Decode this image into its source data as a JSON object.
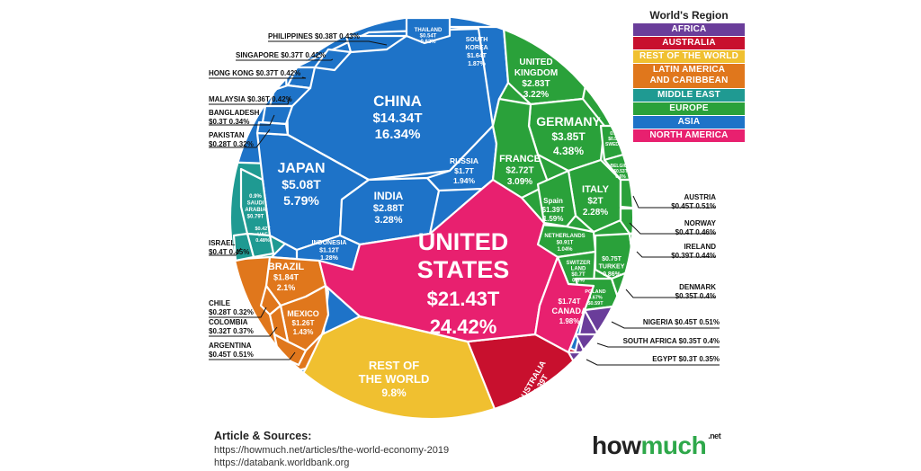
{
  "chart_data": {
    "type": "voronoi-treemap",
    "title": "",
    "unit": "Nominal GDP (USD trillions) and share of world economy",
    "legend_title": "World's Region",
    "regions": [
      {
        "name": "AFRICA",
        "color": "#6a3d9a"
      },
      {
        "name": "AUSTRALIA",
        "color": "#c8102e"
      },
      {
        "name": "REST OF THE WORLD",
        "color": "#f0c030"
      },
      {
        "name": "LATIN AMERICA AND CARIBBEAN",
        "color": "#e0771c"
      },
      {
        "name": "MIDDLE EAST",
        "color": "#1f9a92"
      },
      {
        "name": "EUROPE",
        "color": "#2aa13a"
      },
      {
        "name": "ASIA",
        "color": "#1e73c8"
      },
      {
        "name": "NORTH AMERICA",
        "color": "#e8206f"
      }
    ],
    "countries": [
      {
        "name": "UNITED STATES",
        "gdp": "$21.43T",
        "share": "24.42%",
        "region": "NORTH AMERICA"
      },
      {
        "name": "CHINA",
        "gdp": "$14.34T",
        "share": "16.34%",
        "region": "ASIA"
      },
      {
        "name": "JAPAN",
        "gdp": "$5.08T",
        "share": "5.79%",
        "region": "ASIA"
      },
      {
        "name": "GERMANY",
        "gdp": "$3.85T",
        "share": "4.38%",
        "region": "EUROPE"
      },
      {
        "name": "INDIA",
        "gdp": "$2.88T",
        "share": "3.28%",
        "region": "ASIA"
      },
      {
        "name": "UNITED KINGDOM",
        "gdp": "$2.83T",
        "share": "3.22%",
        "region": "EUROPE"
      },
      {
        "name": "FRANCE",
        "gdp": "$2.72T",
        "share": "3.09%",
        "region": "EUROPE"
      },
      {
        "name": "ITALY",
        "gdp": "$2T",
        "share": "2.28%",
        "region": "EUROPE"
      },
      {
        "name": "BRAZIL",
        "gdp": "$1.84T",
        "share": "2.1%",
        "region": "LATIN AMERICA AND CARIBBEAN"
      },
      {
        "name": "CANADA",
        "gdp": "$1.74T",
        "share": "1.98%",
        "region": "NORTH AMERICA"
      },
      {
        "name": "RUSSIA",
        "gdp": "$1.7T",
        "share": "1.94%",
        "region": "EUROPE"
      },
      {
        "name": "SOUTH KOREA",
        "gdp": "$1.64T",
        "share": "1.87%",
        "region": "ASIA"
      },
      {
        "name": "SPAIN",
        "gdp": "$1.39T",
        "share": "1.59%",
        "region": "EUROPE"
      },
      {
        "name": "AUSTRALIA",
        "gdp": "$1.39T",
        "share": "1.59%",
        "region": "AUSTRALIA"
      },
      {
        "name": "MEXICO",
        "gdp": "$1.26T",
        "share": "1.43%",
        "region": "LATIN AMERICA AND CARIBBEAN"
      },
      {
        "name": "INDONESIA",
        "gdp": "$1.12T",
        "share": "1.28%",
        "region": "ASIA"
      },
      {
        "name": "NETHERLANDS",
        "gdp": "$0.91T",
        "share": "1.04%",
        "region": "EUROPE"
      },
      {
        "name": "SAUDI ARABIA",
        "gdp": "$0.79T",
        "share": "0.9%",
        "region": "MIDDLE EAST"
      },
      {
        "name": "TURKEY",
        "gdp": "$0.75T",
        "share": "0.86%",
        "region": "EUROPE"
      },
      {
        "name": "SWITZERLAND",
        "gdp": "$0.7T",
        "share": "0.8%",
        "region": "EUROPE"
      },
      {
        "name": "POLAND",
        "gdp": "$0.59T",
        "share": "0.67%",
        "region": "EUROPE"
      },
      {
        "name": "THAILAND",
        "gdp": "$0.54T",
        "share": "0.62%",
        "region": "ASIA"
      },
      {
        "name": "SWEDEN",
        "gdp": "$0.53T",
        "share": "0.6%",
        "region": "EUROPE"
      },
      {
        "name": "BELGIUM",
        "gdp": "$0.53T",
        "share": "0.6%",
        "region": "EUROPE"
      },
      {
        "name": "UAE",
        "gdp": "$0.42T",
        "share": "0.48%",
        "region": "MIDDLE EAST"
      },
      {
        "name": "AUSTRIA",
        "gdp": "$0.45T",
        "share": "0.51%",
        "region": "EUROPE"
      },
      {
        "name": "NORWAY",
        "gdp": "$0.4T",
        "share": "0.46%",
        "region": "EUROPE"
      },
      {
        "name": "IRELAND",
        "gdp": "$0.39T",
        "share": "0.44%",
        "region": "EUROPE"
      },
      {
        "name": "DENMARK",
        "gdp": "$0.35T",
        "share": "0.4%",
        "region": "EUROPE"
      },
      {
        "name": "NIGERIA",
        "gdp": "$0.45T",
        "share": "0.51%",
        "region": "AFRICA"
      },
      {
        "name": "SOUTH AFRICA",
        "gdp": "$0.35T",
        "share": "0.4%",
        "region": "AFRICA"
      },
      {
        "name": "EGYPT",
        "gdp": "$0.3T",
        "share": "0.35%",
        "region": "AFRICA"
      },
      {
        "name": "ISRAEL",
        "gdp": "$0.4T",
        "share": "0.45%",
        "region": "MIDDLE EAST"
      },
      {
        "name": "PHILIPPINES",
        "gdp": "$0.38T",
        "share": "0.43%",
        "region": "ASIA"
      },
      {
        "name": "SINGAPORE",
        "gdp": "$0.37T",
        "share": "0.42%",
        "region": "ASIA"
      },
      {
        "name": "HONG KONG",
        "gdp": "$0.37T",
        "share": "0.42%",
        "region": "ASIA"
      },
      {
        "name": "MALAYSIA",
        "gdp": "$0.36T",
        "share": "0.42%",
        "region": "ASIA"
      },
      {
        "name": "BANGLADESH",
        "gdp": "$0.3T",
        "share": "0.34%",
        "region": "ASIA"
      },
      {
        "name": "PAKISTAN",
        "gdp": "$0.28T",
        "share": "0.32%",
        "region": "ASIA"
      },
      {
        "name": "CHILE",
        "gdp": "$0.28T",
        "share": "0.32%",
        "region": "LATIN AMERICA AND CARIBBEAN"
      },
      {
        "name": "COLOMBIA",
        "gdp": "$0.32T",
        "share": "0.37%",
        "region": "LATIN AMERICA AND CARIBBEAN"
      },
      {
        "name": "ARGENTINA",
        "gdp": "$0.45T",
        "share": "0.51%",
        "region": "LATIN AMERICA AND CARIBBEAN"
      },
      {
        "name": "REST OF THE WORLD",
        "gdp": "",
        "share": "9.8%",
        "region": "REST OF THE WORLD"
      }
    ],
    "inline_labels": {
      "us": [
        "UNITED",
        "STATES",
        "$21.43T",
        "24.42%"
      ],
      "china": [
        "CHINA",
        "$14.34T",
        "16.34%"
      ],
      "japan": [
        "JAPAN",
        "$5.08T",
        "5.79%"
      ],
      "india": [
        "INDIA",
        "$2.88T",
        "3.28%"
      ],
      "indonesia": [
        "INDONESIA",
        "$1.12T",
        "1.28%"
      ],
      "russia": [
        "RUSSIA",
        "$1.7T",
        "1.94%"
      ],
      "south_korea": [
        "SOUTH",
        "KOREA",
        "$1.64T",
        "1.87%"
      ],
      "thailand": [
        "THAILAND",
        "$0.54T",
        "0.62%"
      ],
      "uk": [
        "UNITED",
        "KINGDOM",
        "$2.83T",
        "3.22%"
      ],
      "germany": [
        "GERMANY",
        "$3.85T",
        "4.38%"
      ],
      "france": [
        "FRANCE",
        "$2.72T",
        "3.09%"
      ],
      "italy": [
        "ITALY",
        "$2T",
        "2.28%"
      ],
      "spain": [
        "Spain",
        "$1.39T",
        "1.59%"
      ],
      "netherlands": [
        "NETHERLANDS",
        "$0.91T",
        "1.04%"
      ],
      "switzerland": [
        "SWITZER",
        "LAND",
        "$0.7T",
        "0.8%"
      ],
      "turkey": [
        "$0.75T",
        "TURKEY",
        "0.86%"
      ],
      "poland": [
        "POLAND",
        "0.67%",
        "$0.59T"
      ],
      "sweden": [
        "0.6%",
        "$0.53T",
        "SWEDEN"
      ],
      "belgium": [
        "BELGIUM",
        "$0.53T",
        "0.6%"
      ],
      "saudi": [
        "0.9%",
        "SAUDI",
        "ARABIA",
        "$0.79T"
      ],
      "uae": [
        "$0.42T",
        "UAE",
        "0.48%"
      ],
      "brazil": [
        "BRAZIL",
        "$1.84T",
        "2.1%"
      ],
      "mexico": [
        "MEXICO",
        "$1.26T",
        "1.43%"
      ],
      "canada": [
        "$1.74T",
        "CANADA",
        "1.98%"
      ],
      "rest": [
        "REST OF",
        "THE WORLD",
        "9.8%"
      ],
      "australia": [
        "AUSTRALIA",
        "$1.39T",
        "1.59%"
      ]
    },
    "external_labels": {
      "philippines": [
        "PHILIPPINES $0.38T  0.43%"
      ],
      "singapore": [
        "SINGAPORE $0.37T  0.42%"
      ],
      "hong_kong": [
        "HONG KONG  $0.37T  0.42%"
      ],
      "malaysia": [
        "MALAYSIA $0.36T 0.42%"
      ],
      "bangladesh": [
        "BANGLADESH",
        "$0.3T  0.34%"
      ],
      "pakistan": [
        "PAKISTAN",
        "$0.28T  0.32%"
      ],
      "israel": [
        "ISRAEL",
        "$0.4T  0.45%"
      ],
      "chile": [
        "CHILE",
        "$0.28T  0.32%"
      ],
      "colombia": [
        "COLOMBIA",
        "$0.32T  0.37%"
      ],
      "argentina": [
        "ARGENTINA",
        "$0.45T  0.51%"
      ],
      "austria": [
        "AUSTRIA",
        "$0.45T  0.51%"
      ],
      "norway": [
        "NORWAY",
        "$0.4T  0.46%"
      ],
      "ireland": [
        "IRELAND",
        "$0.39T  0.44%"
      ],
      "denmark": [
        "DENMARK",
        "$0.35T  0.4%"
      ],
      "nigeria": [
        "NIGERIA $0.45T  0.51%"
      ],
      "south_africa": [
        "SOUTH AFRICA $0.35T  0.4%"
      ],
      "egypt": [
        "EGYPT $0.3T  0.35%"
      ]
    }
  },
  "legend": {
    "title": "World's Region",
    "items": [
      {
        "lines": [
          "AFRICA"
        ],
        "color": "#6a3d9a"
      },
      {
        "lines": [
          "AUSTRALIA"
        ],
        "color": "#c8102e"
      },
      {
        "lines": [
          "REST OF THE WORLD"
        ],
        "color": "#f0c030"
      },
      {
        "lines": [
          "LATIN AMERICA",
          "AND CARIBBEAN"
        ],
        "color": "#e0771c"
      },
      {
        "lines": [
          "MIDDLE EAST"
        ],
        "color": "#1f9a92"
      },
      {
        "lines": [
          "EUROPE"
        ],
        "color": "#2aa13a"
      },
      {
        "lines": [
          "ASIA"
        ],
        "color": "#1e73c8"
      },
      {
        "lines": [
          "NORTH AMERICA"
        ],
        "color": "#e8206f"
      }
    ]
  },
  "sources": {
    "title": "Article & Sources:",
    "links": [
      "https://howmuch.net/articles/the-world-economy-2019",
      "https://databank.worldbank.org"
    ]
  },
  "brand": {
    "part1": "how",
    "part2": "much",
    "suffix": ".net"
  }
}
